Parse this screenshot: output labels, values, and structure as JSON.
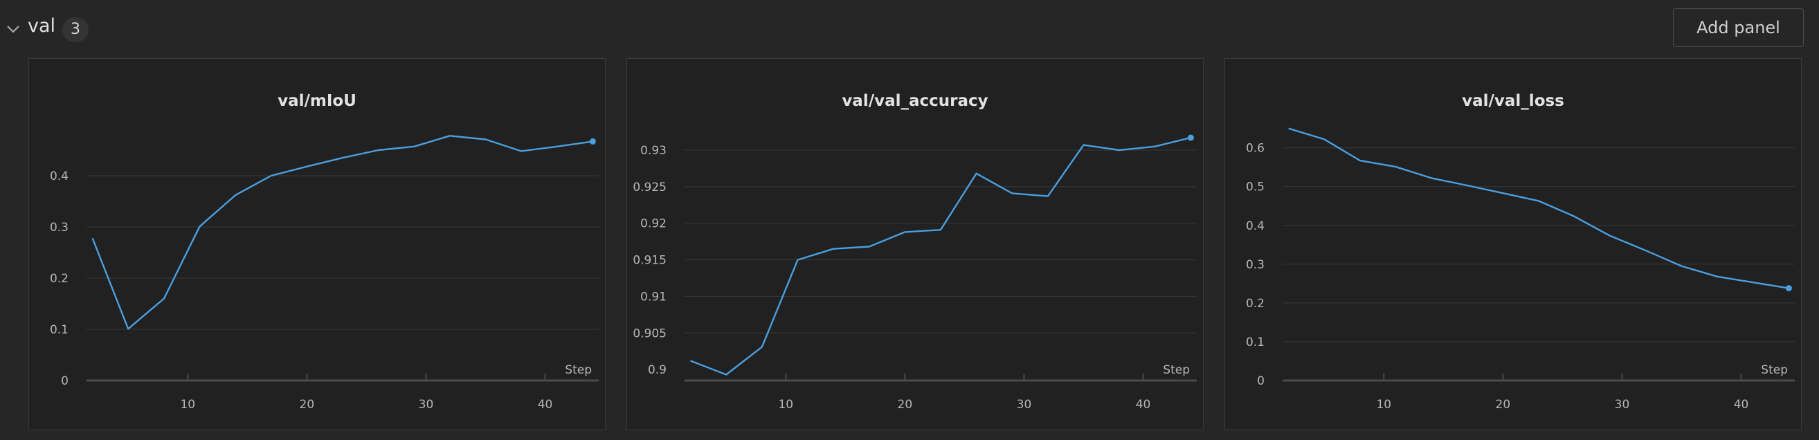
{
  "section": {
    "title": "val",
    "count": "3",
    "add_panel_label": "Add panel"
  },
  "colors": {
    "background": "#262626",
    "panel_bg": "#212121",
    "line": "#4a9fe0"
  },
  "chart_data": [
    {
      "type": "line",
      "title": "val/mIoU",
      "xlabel": "Step",
      "ylabel": "",
      "xlim": [
        1.5,
        44.5
      ],
      "ylim": [
        0,
        0.5
      ],
      "xticks": [
        10,
        20,
        30,
        40
      ],
      "yticks": [
        0,
        0.1,
        0.2,
        0.3,
        0.4
      ],
      "ytick_labels": [
        "0",
        "0.1",
        "0.2",
        "0.3",
        "0.4"
      ],
      "grid": true,
      "series": [
        {
          "x": [
            2,
            5,
            8,
            11,
            14,
            17,
            20,
            23,
            26,
            29,
            32,
            35,
            38,
            41,
            44
          ],
          "y": [
            0.278,
            0.101,
            0.16,
            0.301,
            0.362,
            0.4,
            0.418,
            0.435,
            0.45,
            0.457,
            0.478,
            0.471,
            0.448,
            0.457,
            0.467
          ]
        }
      ]
    },
    {
      "type": "line",
      "title": "val/val_accuracy",
      "xlabel": "Step",
      "ylabel": "",
      "xlim": [
        1.5,
        44.5
      ],
      "ylim": [
        0.8985,
        0.9335
      ],
      "xticks": [
        10,
        20,
        30,
        40
      ],
      "yticks": [
        0.9,
        0.905,
        0.91,
        0.915,
        0.92,
        0.925,
        0.93
      ],
      "ytick_labels": [
        "0.9",
        "0.905",
        "0.91",
        "0.915",
        "0.92",
        "0.925",
        "0.93"
      ],
      "grid": true,
      "series": [
        {
          "x": [
            2,
            5,
            8,
            11,
            14,
            17,
            20,
            23,
            26,
            29,
            32,
            35,
            38,
            41,
            44
          ],
          "y": [
            0.9012,
            0.8993,
            0.9031,
            0.915,
            0.9165,
            0.9168,
            0.9188,
            0.9191,
            0.9268,
            0.9241,
            0.9237,
            0.9307,
            0.93,
            0.9305,
            0.9317
          ]
        }
      ]
    },
    {
      "type": "line",
      "title": "val/val_loss",
      "xlabel": "Step",
      "ylabel": "",
      "xlim": [
        1.5,
        44.5
      ],
      "ylim": [
        0,
        0.66
      ],
      "xticks": [
        10,
        20,
        30,
        40
      ],
      "yticks": [
        0,
        0.1,
        0.2,
        0.3,
        0.4,
        0.5,
        0.6
      ],
      "ytick_labels": [
        "0",
        "0.1",
        "0.2",
        "0.3",
        "0.4",
        "0.5",
        "0.6"
      ],
      "grid": true,
      "series": [
        {
          "x": [
            2,
            5,
            8,
            11,
            14,
            17,
            20,
            23,
            26,
            29,
            32,
            35,
            38,
            41,
            44
          ],
          "y": [
            0.65,
            0.622,
            0.567,
            0.551,
            0.522,
            0.503,
            0.483,
            0.463,
            0.423,
            0.373,
            0.335,
            0.295,
            0.268,
            0.253,
            0.238
          ]
        }
      ]
    }
  ]
}
